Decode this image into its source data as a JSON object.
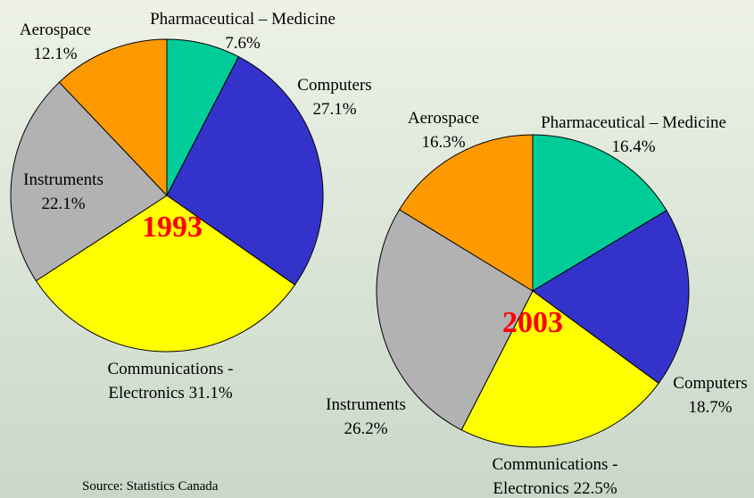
{
  "chart_data": [
    {
      "type": "pie",
      "title": "1993",
      "categories": [
        "Pharmaceutical – Medicine",
        "Computers",
        "Communications - Electronics",
        "Instruments",
        "Aerospace"
      ],
      "values": [
        7.6,
        27.1,
        31.1,
        22.1,
        12.1
      ],
      "value_labels": [
        "7.6%",
        "27.1%",
        "31.1%",
        "22.1%",
        "12.1%"
      ],
      "colors": [
        "#00cc99",
        "#3333cc",
        "#ffff00",
        "#b2b2b2",
        "#ff9900"
      ]
    },
    {
      "type": "pie",
      "title": "2003",
      "categories": [
        "Pharmaceutical – Medicine",
        "Computers",
        "Communications - Electronics",
        "Instruments",
        "Aerospace"
      ],
      "values": [
        16.4,
        18.7,
        22.5,
        26.2,
        16.3
      ],
      "value_labels": [
        "16.4%",
        "18.7%",
        "22.5%",
        "26.2%",
        "16.3%"
      ],
      "colors": [
        "#00cc99",
        "#3333cc",
        "#ffff00",
        "#b2b2b2",
        "#ff9900"
      ]
    }
  ],
  "source": "Source:  Statistics Canada"
}
